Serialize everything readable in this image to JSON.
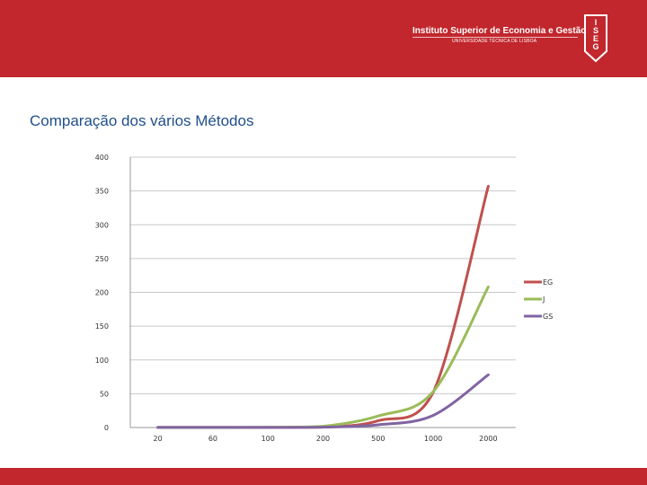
{
  "header": {
    "institution": "Instituto Superior de Economia e Gestão",
    "university": "UNIVERSIDADE TÉCNICA DE LISBOA",
    "logo_letters": [
      "I",
      "S",
      "E",
      "G"
    ],
    "band_color": "#c1272d"
  },
  "slide": {
    "title": "Comparação dos vários Métodos"
  },
  "chart_data": {
    "type": "line",
    "title": "",
    "xlabel": "",
    "ylabel": "",
    "categories": [
      "20",
      "60",
      "100",
      "200",
      "500",
      "1000",
      "2000"
    ],
    "ylim": [
      0,
      400
    ],
    "yticks": [
      0,
      50,
      100,
      150,
      200,
      250,
      300,
      350,
      400
    ],
    "grid": true,
    "legend_position": "right",
    "series": [
      {
        "name": "EG",
        "color": "#c0504d",
        "values": [
          0.1,
          0.1,
          0.2,
          0.6,
          10,
          52,
          357
        ]
      },
      {
        "name": "J",
        "color": "#9bbb59",
        "values": [
          0.2,
          0.2,
          0.4,
          1.8,
          17,
          53,
          208
        ]
      },
      {
        "name": "GS",
        "color": "#8064a2",
        "values": [
          0.1,
          0.1,
          0.2,
          0.5,
          4,
          18,
          78
        ]
      }
    ]
  }
}
